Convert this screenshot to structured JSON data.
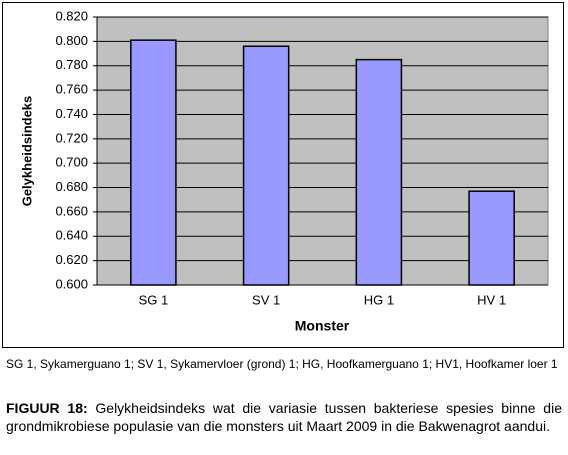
{
  "chart_data": {
    "type": "bar",
    "y_label": "Gelykheidsindeks",
    "x_label": "Monster",
    "categories": [
      "SG 1",
      "SV 1",
      "HG 1",
      "HV 1"
    ],
    "values": [
      0.801,
      0.796,
      0.785,
      0.677
    ],
    "color": "#9999ff",
    "plot_background": "#c0c0c0",
    "grid": true,
    "ylim": [
      0.6,
      0.82
    ],
    "yticks": [
      {
        "value": 0.6,
        "label": "0.600"
      },
      {
        "value": 0.62,
        "label": "0.620"
      },
      {
        "value": 0.64,
        "label": "0.640"
      },
      {
        "value": 0.66,
        "label": "0.660"
      },
      {
        "value": 0.68,
        "label": "0.680"
      },
      {
        "value": 0.7,
        "label": "0.700"
      },
      {
        "value": 0.72,
        "label": "0.720"
      },
      {
        "value": 0.74,
        "label": "0.740"
      },
      {
        "value": 0.76,
        "label": "0.760"
      },
      {
        "value": 0.78,
        "label": "0.780"
      },
      {
        "value": 0.8,
        "label": "0.800"
      },
      {
        "value": 0.82,
        "label": "0.820"
      }
    ]
  },
  "footnote": "SG 1, Sykamerguano 1; SV 1, Sykamervloer (grond) 1; HG, Hoofkamerguano 1; HV1, Hoofkamer loer 1",
  "caption": {
    "label": "FIGUUR 18:",
    "text": "Gelykheidsindeks wat die variasie tussen bakteriese spesies binne die grondmikrobiese populasie van die monsters uit Maart 2009 in die Bakwenagrot aandui."
  }
}
